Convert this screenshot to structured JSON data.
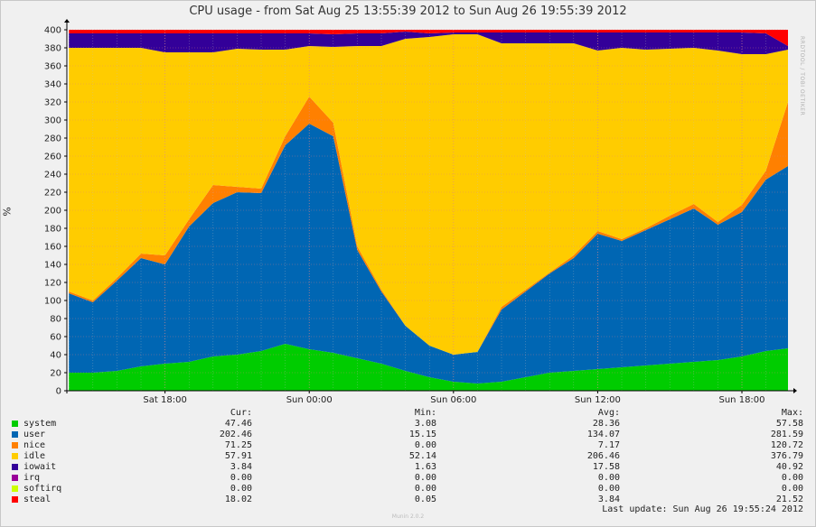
{
  "chart_data": {
    "type": "area",
    "stacked": true,
    "title": "CPU usage - from Sat Aug 25 13:55:39 2012 to Sun Aug 26 19:55:39 2012",
    "ylabel": "%",
    "ylim": [
      0,
      400
    ],
    "yticks": [
      0,
      20,
      40,
      60,
      80,
      100,
      120,
      140,
      160,
      180,
      200,
      220,
      240,
      260,
      280,
      300,
      320,
      340,
      360,
      380,
      400
    ],
    "xlim": [
      "2012-08-25 13:55",
      "2012-08-26 19:55"
    ],
    "xticks": [
      {
        "t": "2012-08-25 18:00",
        "label": "Sat 18:00"
      },
      {
        "t": "2012-08-26 00:00",
        "label": "Sun 00:00"
      },
      {
        "t": "2012-08-26 06:00",
        "label": "Sun 06:00"
      },
      {
        "t": "2012-08-26 12:00",
        "label": "Sun 12:00"
      },
      {
        "t": "2012-08-26 18:00",
        "label": "Sun 18:00"
      }
    ],
    "grid": true,
    "x": [
      "2012-08-25 14:00",
      "2012-08-25 15:00",
      "2012-08-25 16:00",
      "2012-08-25 17:00",
      "2012-08-25 18:00",
      "2012-08-25 19:00",
      "2012-08-25 20:00",
      "2012-08-25 21:00",
      "2012-08-25 22:00",
      "2012-08-25 23:00",
      "2012-08-26 00:00",
      "2012-08-26 01:00",
      "2012-08-26 02:00",
      "2012-08-26 03:00",
      "2012-08-26 04:00",
      "2012-08-26 05:00",
      "2012-08-26 06:00",
      "2012-08-26 07:00",
      "2012-08-26 08:00",
      "2012-08-26 09:00",
      "2012-08-26 10:00",
      "2012-08-26 11:00",
      "2012-08-26 12:00",
      "2012-08-26 13:00",
      "2012-08-26 14:00",
      "2012-08-26 15:00",
      "2012-08-26 16:00",
      "2012-08-26 17:00",
      "2012-08-26 18:00",
      "2012-08-26 19:00",
      "2012-08-26 19:55"
    ],
    "series": [
      {
        "name": "system",
        "color": "#00cc00",
        "values": [
          20,
          20,
          22,
          27,
          30,
          32,
          38,
          40,
          44,
          52,
          46,
          42,
          36,
          30,
          22,
          15,
          10,
          8,
          10,
          15,
          20,
          22,
          24,
          26,
          28,
          30,
          32,
          34,
          38,
          44,
          47
        ]
      },
      {
        "name": "user",
        "color": "#0066b3",
        "values": [
          88,
          78,
          100,
          120,
          110,
          150,
          170,
          180,
          175,
          220,
          250,
          240,
          120,
          80,
          50,
          35,
          30,
          35,
          80,
          95,
          110,
          125,
          150,
          140,
          150,
          160,
          170,
          150,
          160,
          190,
          202
        ]
      },
      {
        "name": "nice",
        "color": "#ff8000",
        "values": [
          2,
          2,
          3,
          5,
          10,
          8,
          20,
          6,
          5,
          10,
          30,
          15,
          4,
          2,
          0,
          0,
          0,
          0,
          3,
          2,
          1,
          3,
          3,
          2,
          2,
          4,
          5,
          3,
          8,
          10,
          71
        ]
      },
      {
        "name": "idle",
        "color": "#ffcc00",
        "values": [
          270,
          280,
          255,
          228,
          225,
          185,
          147,
          153,
          154,
          96,
          56,
          84,
          222,
          270,
          318,
          342,
          355,
          352,
          292,
          273,
          254,
          235,
          200,
          212,
          198,
          185,
          173,
          190,
          167,
          129,
          58
        ]
      },
      {
        "name": "iowait",
        "color": "#330099",
        "values": [
          16,
          16,
          16,
          16,
          21,
          21,
          21,
          17,
          18,
          18,
          14,
          14,
          14,
          14,
          8,
          4,
          2,
          2,
          12,
          12,
          12,
          12,
          20,
          17,
          19,
          18,
          17,
          20,
          24,
          23,
          4
        ]
      },
      {
        "name": "irq",
        "color": "#990099",
        "values": [
          0,
          0,
          0,
          0,
          0,
          0,
          0,
          0,
          0,
          0,
          0,
          0,
          0,
          0,
          0,
          0,
          0,
          0,
          0,
          0,
          0,
          0,
          0,
          0,
          0,
          0,
          0,
          0,
          0,
          0,
          0
        ]
      },
      {
        "name": "softirq",
        "color": "#ccff00",
        "values": [
          0,
          0,
          0,
          0,
          0,
          0,
          0,
          0,
          0,
          0,
          0,
          0,
          0,
          0,
          0,
          0,
          0,
          0,
          0,
          0,
          0,
          0,
          0,
          0,
          0,
          0,
          0,
          0,
          0,
          0,
          0
        ]
      },
      {
        "name": "steal",
        "color": "#ff0000",
        "values": [
          4,
          4,
          4,
          4,
          4,
          4,
          4,
          4,
          4,
          4,
          4,
          5,
          4,
          4,
          2,
          4,
          3,
          3,
          3,
          3,
          3,
          3,
          3,
          3,
          3,
          3,
          3,
          3,
          3,
          4,
          18
        ]
      }
    ],
    "legend": {
      "headers": [
        "Cur:",
        "Min:",
        "Avg:",
        "Max:"
      ],
      "rows": [
        {
          "name": "system",
          "color": "#00cc00",
          "cur": "47.46",
          "min": "3.08",
          "avg": "28.36",
          "max": "57.58"
        },
        {
          "name": "user",
          "color": "#0066b3",
          "cur": "202.46",
          "min": "15.15",
          "avg": "134.07",
          "max": "281.59"
        },
        {
          "name": "nice",
          "color": "#ff8000",
          "cur": "71.25",
          "min": "0.00",
          "avg": "7.17",
          "max": "120.72"
        },
        {
          "name": "idle",
          "color": "#ffcc00",
          "cur": "57.91",
          "min": "52.14",
          "avg": "206.46",
          "max": "376.79"
        },
        {
          "name": "iowait",
          "color": "#330099",
          "cur": "3.84",
          "min": "1.63",
          "avg": "17.58",
          "max": "40.92"
        },
        {
          "name": "irq",
          "color": "#990099",
          "cur": "0.00",
          "min": "0.00",
          "avg": "0.00",
          "max": "0.00"
        },
        {
          "name": "softirq",
          "color": "#ccff00",
          "cur": "0.00",
          "min": "0.00",
          "avg": "0.00",
          "max": "0.00"
        },
        {
          "name": "steal",
          "color": "#ff0000",
          "cur": "18.02",
          "min": "0.05",
          "avg": "3.84",
          "max": "21.52"
        }
      ]
    },
    "last_update": "Last update: Sun Aug 26 19:55:24 2012",
    "side_label": "RRDTOOL / TOBI OETIKER",
    "footer": "Munin 2.0.2"
  }
}
